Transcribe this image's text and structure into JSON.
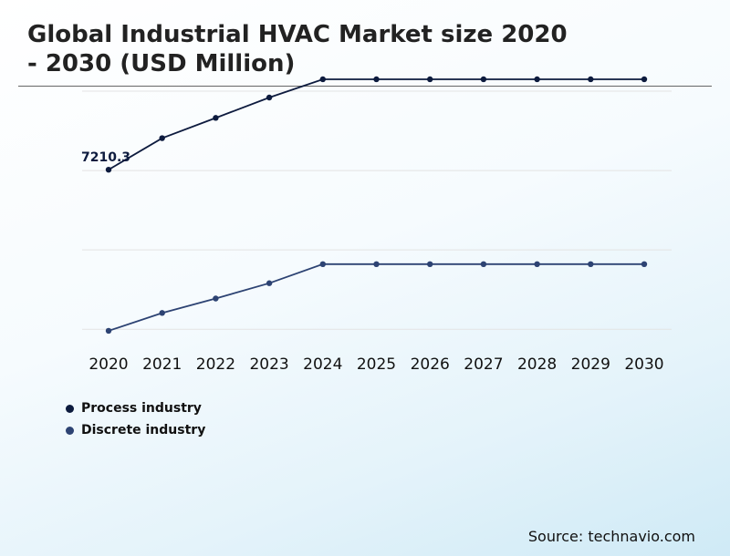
{
  "title": "Global Industrial HVAC Market size 2020\n- 2030 (USD Million)",
  "source": "Source: technavio.com",
  "chart_data": {
    "type": "line",
    "categories": [
      "2020",
      "2021",
      "2022",
      "2023",
      "2024",
      "2025",
      "2026",
      "2027",
      "2028",
      "2029",
      "2030"
    ],
    "series": [
      {
        "name": "Process industry",
        "color": "#0d1b3e",
        "values": [
          7210.3,
          7608,
          7863,
          8120,
          8350,
          8350,
          8350,
          8350,
          8350,
          8350,
          8350
        ],
        "data_labels": [
          "7210.3",
          "",
          "",
          "",
          "",
          "",
          "",
          "",
          "",
          "",
          ""
        ]
      },
      {
        "name": "Discrete industry",
        "color": "#2d4373",
        "values": [
          5180,
          5405,
          5587,
          5780,
          6020,
          6020,
          6020,
          6020,
          6020,
          6020,
          6020
        ],
        "data_labels": [
          "",
          "",
          "",
          "",
          "",
          "",
          "",
          "",
          "",
          "",
          ""
        ]
      }
    ],
    "ylim": [
      4984,
      8430
    ],
    "y_gridlines": [
      5200,
      6200,
      7200,
      8200
    ],
    "grid": true,
    "legend_position": "bottom-left",
    "y_axis_labels": false
  }
}
